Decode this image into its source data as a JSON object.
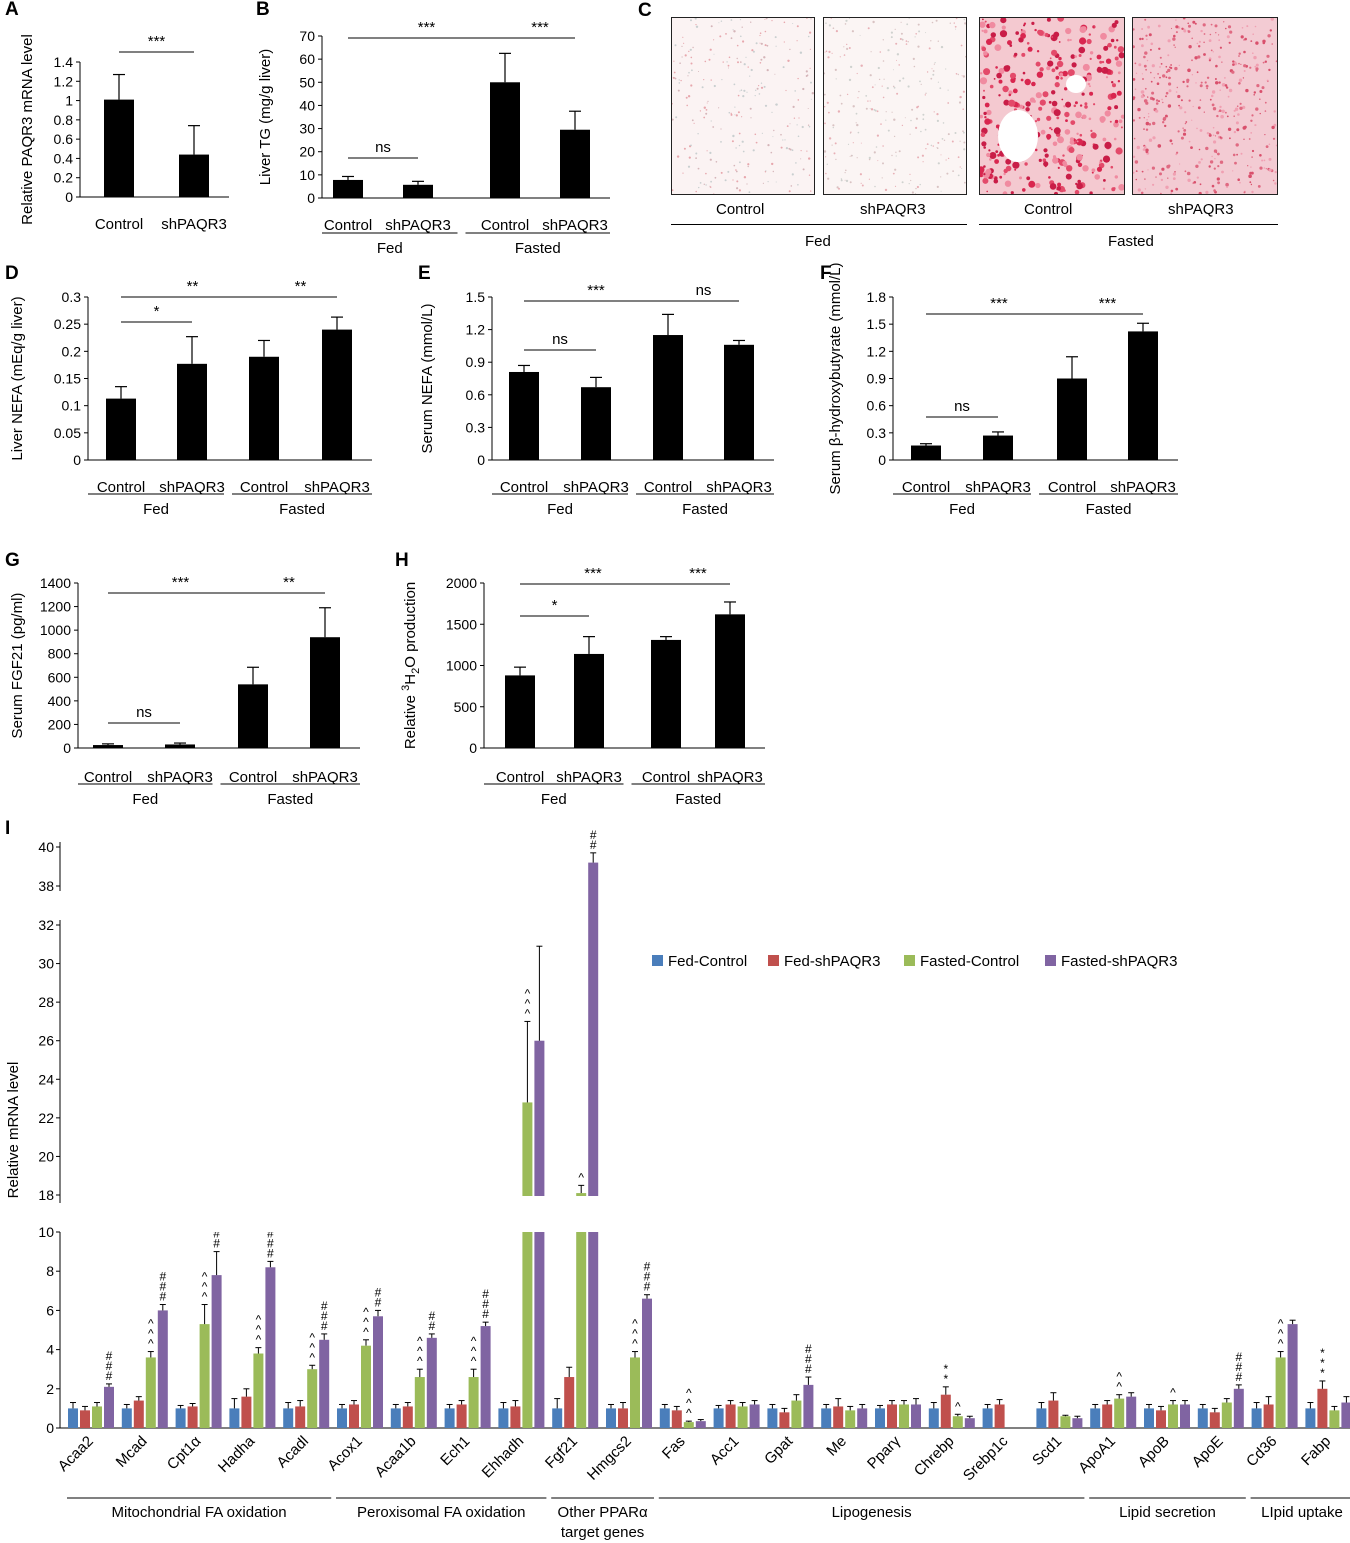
{
  "panel_labels": {
    "A": "A",
    "B": "B",
    "C": "C",
    "D": "D",
    "E": "E",
    "F": "F",
    "G": "G",
    "H": "H",
    "I": "I"
  },
  "colors": {
    "bar": "#000000",
    "fed_control": "#4a7ebb",
    "fed_shpaqr3": "#c0504d",
    "fasted_control": "#9bbb59",
    "fasted_shpaqr3": "#8064a2"
  },
  "panel_c": {
    "images": [
      "fed-control",
      "fed-shpaqr3",
      "fasted-control",
      "fasted-shpaqr3"
    ],
    "labels": [
      "Control",
      "shPAQR3",
      "Control",
      "shPAQR3"
    ],
    "groups": [
      "Fed",
      "Fasted"
    ]
  },
  "chart_data": [
    {
      "id": "A",
      "type": "bar",
      "ylabel": "Relative PAQR3 mRNA level",
      "categories": [
        "Control",
        "shPAQR3"
      ],
      "values": [
        1.01,
        0.44
      ],
      "errors": [
        0.26,
        0.3
      ],
      "ylim": [
        0,
        1.4
      ],
      "yticks": [
        "0",
        "0.2",
        "0.4",
        "0.6",
        "0.8",
        "1",
        "1.2",
        "1.4"
      ],
      "sig": [
        {
          "from": 0,
          "to": 1,
          "text": "***"
        }
      ]
    },
    {
      "id": "B",
      "type": "bar",
      "ylabel": "Liver TG (mg/g liver)",
      "categories": [
        "Control",
        "shPAQR3",
        "Control",
        "shPAQR3"
      ],
      "groups": [
        "Fed",
        "Fasted"
      ],
      "values": [
        7.8,
        5.7,
        50,
        29.5
      ],
      "errors": [
        1.5,
        1.5,
        12.5,
        8
      ],
      "ylim": [
        0,
        70
      ],
      "yticks": [
        "0",
        "10",
        "20",
        "30",
        "40",
        "50",
        "60",
        "70"
      ],
      "sig": [
        {
          "from": 0,
          "to": 1,
          "text": "ns"
        },
        {
          "from": 0,
          "to": 2,
          "text": "***"
        },
        {
          "from": 2,
          "to": 3,
          "text": "***"
        }
      ]
    },
    {
      "id": "D",
      "type": "bar",
      "ylabel": "Liver NEFA (mEq/g liver)",
      "categories": [
        "Control",
        "shPAQR3",
        "Control",
        "shPAQR3"
      ],
      "groups": [
        "Fed",
        "Fasted"
      ],
      "values": [
        0.113,
        0.177,
        0.19,
        0.24
      ],
      "errors": [
        0.022,
        0.05,
        0.03,
        0.023
      ],
      "ylim": [
        0,
        0.3
      ],
      "yticks": [
        "0",
        "0.05",
        "0.1",
        "0.15",
        "0.2",
        "0.25",
        "0.3"
      ],
      "sig": [
        {
          "from": 0,
          "to": 1,
          "text": "*"
        },
        {
          "from": 0,
          "to": 2,
          "text": "**"
        },
        {
          "from": 2,
          "to": 3,
          "text": "**"
        }
      ]
    },
    {
      "id": "E",
      "type": "bar",
      "ylabel": "Serum NEFA (mmol/L)",
      "categories": [
        "Control",
        "shPAQR3",
        "Control",
        "shPAQR3"
      ],
      "groups": [
        "Fed",
        "Fasted"
      ],
      "values": [
        0.81,
        0.67,
        1.15,
        1.06
      ],
      "errors": [
        0.06,
        0.09,
        0.19,
        0.04
      ],
      "ylim": [
        0,
        1.5
      ],
      "yticks": [
        "0",
        "0.3",
        "0.6",
        "0.9",
        "1.2",
        "1.5"
      ],
      "sig": [
        {
          "from": 0,
          "to": 1,
          "text": "ns"
        },
        {
          "from": 0,
          "to": 2,
          "text": "***"
        },
        {
          "from": 2,
          "to": 3,
          "text": "ns"
        }
      ]
    },
    {
      "id": "F",
      "type": "bar",
      "ylabel": "Serum β-hydroxybutyrate (mmol/L)",
      "categories": [
        "Control",
        "shPAQR3",
        "Control",
        "shPAQR3"
      ],
      "groups": [
        "Fed",
        "Fasted"
      ],
      "values": [
        0.16,
        0.27,
        0.9,
        1.42
      ],
      "errors": [
        0.02,
        0.04,
        0.24,
        0.09
      ],
      "ylim": [
        0,
        1.8
      ],
      "yticks": [
        "0",
        "0.3",
        "0.6",
        "0.9",
        "1.2",
        "1.5",
        "1.8"
      ],
      "sig": [
        {
          "from": 0,
          "to": 1,
          "text": "ns"
        },
        {
          "from": 0,
          "to": 2,
          "text": "***"
        },
        {
          "from": 2,
          "to": 3,
          "text": "***"
        }
      ]
    },
    {
      "id": "G",
      "type": "bar",
      "ylabel": "Serum FGF21 (pg/ml)",
      "categories": [
        "Control",
        "shPAQR3",
        "Control",
        "shPAQR3"
      ],
      "groups": [
        "Fed",
        "Fasted"
      ],
      "values": [
        25,
        30,
        540,
        940
      ],
      "errors": [
        10,
        12,
        145,
        250
      ],
      "ylim": [
        0,
        1400
      ],
      "yticks": [
        "0",
        "200",
        "400",
        "600",
        "800",
        "1000",
        "1200",
        "1400"
      ],
      "sig": [
        {
          "from": 0,
          "to": 1,
          "text": "ns"
        },
        {
          "from": 0,
          "to": 2,
          "text": "***"
        },
        {
          "from": 2,
          "to": 3,
          "text": "**"
        }
      ]
    },
    {
      "id": "H",
      "type": "bar",
      "ylabel_pre": "Relative ",
      "ylabel_sup": "3",
      "ylabel_mid": "H",
      "ylabel_sub": "2",
      "ylabel_post": "O production",
      "categories": [
        "Control",
        "shPAQR3",
        "Control",
        "shPAQR3"
      ],
      "groups": [
        "Fed",
        "Fasted"
      ],
      "values": [
        880,
        1140,
        1310,
        1620
      ],
      "errors": [
        100,
        210,
        40,
        150
      ],
      "ylim": [
        0,
        2000
      ],
      "yticks": [
        "0",
        "500",
        "1000",
        "1500",
        "2000"
      ],
      "sig": [
        {
          "from": 0,
          "to": 1,
          "text": "*"
        },
        {
          "from": 0,
          "to": 2,
          "text": "***"
        },
        {
          "from": 2,
          "to": 3,
          "text": "***"
        }
      ]
    },
    {
      "id": "I",
      "type": "bar",
      "ylabel": "Relative mRNA level",
      "series_names": [
        "Fed-Control",
        "Fed-shPAQR3",
        "Fasted-Control",
        "Fasted-shPAQR3"
      ],
      "categories": [
        "Acaa2",
        "Mcad",
        "Cpt1α",
        "Hadha",
        "Acadl",
        "Acox1",
        "Acaa1b",
        "Ech1",
        "Ehhadh",
        "Fgf21",
        "Hmgcs2",
        "Fas",
        "Acc1",
        "Gpat",
        "Me",
        "Pparγ",
        "Chrebp",
        "Srebp1c",
        "Scd1",
        "ApoA1",
        "ApoB",
        "ApoE",
        "Cd36",
        "Fabp"
      ],
      "values": [
        [
          1,
          0.9,
          1.1,
          2.1
        ],
        [
          1,
          1.4,
          3.6,
          6.0
        ],
        [
          1,
          1.1,
          5.3,
          7.8
        ],
        [
          1,
          1.6,
          3.8,
          8.2
        ],
        [
          1,
          1.1,
          3.0,
          4.5
        ],
        [
          1,
          1.2,
          4.2,
          5.7
        ],
        [
          1,
          1.1,
          2.6,
          4.6
        ],
        [
          1,
          1.2,
          2.6,
          5.2
        ],
        [
          1,
          1.1,
          22.8,
          26.0
        ],
        [
          1,
          2.6,
          18.1,
          39.2
        ],
        [
          1,
          1.0,
          3.6,
          6.6
        ],
        [
          1,
          0.9,
          0.3,
          0.35
        ],
        [
          1,
          1.2,
          1.1,
          1.2
        ],
        [
          1,
          0.8,
          1.4,
          2.2
        ],
        [
          1,
          1.1,
          0.9,
          1.0
        ],
        [
          1,
          1.2,
          1.2,
          1.2
        ],
        [
          1,
          1.7,
          0.6,
          0.5
        ],
        [
          1,
          1.2,
          0,
          0
        ],
        [
          1,
          1.4,
          0.6,
          0.5
        ],
        [
          1,
          1.2,
          1.5,
          1.6
        ],
        [
          1,
          0.9,
          1.2,
          1.2
        ],
        [
          1,
          0.8,
          1.3,
          2.0
        ],
        [
          1,
          1.2,
          3.6,
          5.3
        ],
        [
          1,
          2.0,
          0.9,
          1.3
        ]
      ],
      "errors": [
        [
          0.3,
          0.2,
          0.2,
          0.15
        ],
        [
          0.2,
          0.2,
          0.3,
          0.3
        ],
        [
          0.15,
          0.15,
          1.0,
          1.2
        ],
        [
          0.5,
          0.4,
          0.3,
          0.3
        ],
        [
          0.3,
          0.3,
          0.2,
          0.3
        ],
        [
          0.2,
          0.2,
          0.3,
          0.3
        ],
        [
          0.2,
          0.2,
          0.4,
          0.2
        ],
        [
          0.2,
          0.2,
          0.4,
          0.2
        ],
        [
          0.3,
          0.3,
          4.2,
          4.9
        ],
        [
          0.5,
          0.5,
          0.4,
          0.5
        ],
        [
          0.2,
          0.3,
          0.3,
          0.2
        ],
        [
          0.2,
          0.2,
          0.05,
          0.08
        ],
        [
          0.15,
          0.2,
          0.2,
          0.2
        ],
        [
          0.2,
          0.2,
          0.3,
          0.4
        ],
        [
          0.2,
          0.4,
          0.2,
          0.2
        ],
        [
          0.15,
          0.2,
          0.2,
          0.3
        ],
        [
          0.3,
          0.4,
          0.1,
          0.1
        ],
        [
          0.2,
          0.25,
          0,
          0
        ],
        [
          0.3,
          0.4,
          0.05,
          0.1
        ],
        [
          0.2,
          0.2,
          0.2,
          0.2
        ],
        [
          0.2,
          0.2,
          0.2,
          0.2
        ],
        [
          0.2,
          0.2,
          0.2,
          0.2
        ],
        [
          0.3,
          0.4,
          0.3,
          0.2
        ],
        [
          0.3,
          0.4,
          0.2,
          0.3
        ]
      ],
      "marks": [
        [
          null,
          null,
          null,
          "###"
        ],
        [
          null,
          null,
          "^^^",
          "###"
        ],
        [
          null,
          null,
          "^^^",
          "###"
        ],
        [
          null,
          null,
          "^^^",
          "###"
        ],
        [
          null,
          null,
          "^^^",
          "###"
        ],
        [
          null,
          null,
          "^^^",
          "##"
        ],
        [
          null,
          null,
          "^^^",
          "##"
        ],
        [
          null,
          null,
          "^^^",
          "###"
        ],
        [
          null,
          null,
          "^^^",
          null
        ],
        [
          null,
          null,
          "^",
          "##"
        ],
        [
          null,
          null,
          "^^^",
          "###"
        ],
        [
          null,
          null,
          "^^^",
          null
        ],
        [
          null,
          null,
          null,
          null
        ],
        [
          null,
          null,
          null,
          "###"
        ],
        [
          null,
          null,
          null,
          null
        ],
        [
          null,
          null,
          null,
          null
        ],
        [
          null,
          "**",
          "^",
          null
        ],
        [
          null,
          null,
          "^^^",
          null
        ],
        [
          null,
          null,
          null,
          null
        ],
        [
          null,
          null,
          "^^",
          null
        ],
        [
          null,
          null,
          "^",
          null
        ],
        [
          null,
          null,
          null,
          "###"
        ],
        [
          null,
          null,
          "^^^",
          null
        ],
        [
          null,
          "***",
          null,
          null
        ]
      ],
      "yticks_low": [
        "0",
        "2",
        "4",
        "6",
        "8",
        "10"
      ],
      "yticks_mid": [
        "18",
        "20",
        "22",
        "24",
        "26",
        "28",
        "30",
        "32"
      ],
      "yticks_high": [
        "38",
        "40"
      ],
      "gene_groups": [
        {
          "label": "Mitochondrial FA oxidation",
          "from": 0,
          "to": 4
        },
        {
          "label": "Peroxisomal FA oxidation",
          "from": 5,
          "to": 8
        },
        {
          "label": "Other PPARα",
          "label2": "target genes",
          "from": 9,
          "to": 10
        },
        {
          "label": "Lipogenesis",
          "from": 11,
          "to": 18
        },
        {
          "label": "Lipid secretion",
          "from": 19,
          "to": 21
        },
        {
          "label": "LIpid uptake",
          "from": 22,
          "to": 23
        }
      ]
    }
  ]
}
